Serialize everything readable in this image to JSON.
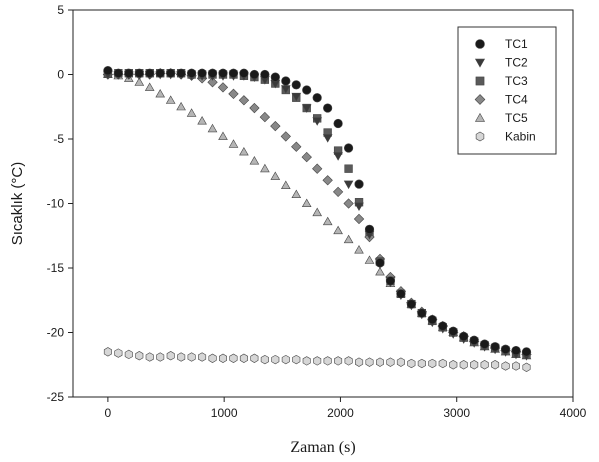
{
  "chart_data": {
    "type": "scatter",
    "title": "",
    "xlabel": "Zaman (s)",
    "ylabel": "Sıcaklık (°C)",
    "xlim": [
      -300,
      4000
    ],
    "ylim": [
      -25,
      5
    ],
    "xticks": [
      0,
      1000,
      2000,
      3000,
      4000
    ],
    "yticks": [
      5,
      0,
      -5,
      -10,
      -15,
      -20,
      -25
    ],
    "grid": false,
    "legend_position": "top-right",
    "series": [
      {
        "name": "TC1",
        "marker": "circle",
        "color": "#1a1a1a",
        "x": [
          0,
          90,
          180,
          270,
          360,
          450,
          540,
          630,
          720,
          810,
          900,
          990,
          1080,
          1170,
          1260,
          1350,
          1440,
          1530,
          1620,
          1710,
          1800,
          1890,
          1980,
          2070,
          2160,
          2250,
          2340,
          2430,
          2520,
          2610,
          2700,
          2790,
          2880,
          2970,
          3060,
          3150,
          3240,
          3330,
          3420,
          3510,
          3600
        ],
        "y": [
          0.3,
          0.1,
          0.1,
          0.1,
          0.1,
          0.1,
          0.1,
          0.1,
          0.1,
          0.1,
          0.1,
          0.1,
          0.1,
          0.1,
          0.0,
          0.0,
          -0.2,
          -0.5,
          -0.8,
          -1.2,
          -1.8,
          -2.6,
          -3.8,
          -5.7,
          -8.5,
          -12.0,
          -14.6,
          -16.0,
          -17.0,
          -17.8,
          -18.5,
          -19.0,
          -19.5,
          -19.9,
          -20.3,
          -20.6,
          -20.9,
          -21.1,
          -21.3,
          -21.4,
          -21.5
        ]
      },
      {
        "name": "TC2",
        "marker": "triangle-down",
        "color": "#3a3a3a",
        "x": [
          0,
          90,
          180,
          270,
          360,
          450,
          540,
          630,
          720,
          810,
          900,
          990,
          1080,
          1170,
          1260,
          1350,
          1440,
          1530,
          1620,
          1710,
          1800,
          1890,
          1980,
          2070,
          2160,
          2250,
          2340,
          2430,
          2520,
          2610,
          2700,
          2790,
          2880,
          2970,
          3060,
          3150,
          3240,
          3330,
          3420,
          3510,
          3600
        ],
        "y": [
          0.0,
          0.0,
          0.0,
          0.0,
          0.0,
          0.0,
          0.0,
          0.0,
          -0.1,
          -0.1,
          -0.1,
          -0.1,
          -0.1,
          -0.1,
          -0.2,
          -0.4,
          -0.7,
          -1.1,
          -1.7,
          -2.6,
          -3.6,
          -4.9,
          -6.3,
          -8.5,
          -10.2,
          -12.4,
          -14.7,
          -16.1,
          -17.1,
          -17.9,
          -18.6,
          -19.2,
          -19.7,
          -20.1,
          -20.5,
          -20.8,
          -21.1,
          -21.3,
          -21.5,
          -21.7,
          -21.8
        ]
      },
      {
        "name": "TC3",
        "marker": "square",
        "color": "#5a5a5a",
        "x": [
          0,
          90,
          180,
          270,
          360,
          450,
          540,
          630,
          720,
          810,
          900,
          990,
          1080,
          1170,
          1260,
          1350,
          1440,
          1530,
          1620,
          1710,
          1800,
          1890,
          1980,
          2070,
          2160,
          2250,
          2340,
          2430,
          2520,
          2610,
          2700,
          2790,
          2880,
          2970,
          3060,
          3150,
          3240,
          3330,
          3420,
          3510,
          3600
        ],
        "y": [
          0.1,
          0.1,
          0.1,
          0.1,
          0.1,
          0.1,
          0.1,
          0.1,
          0.0,
          0.0,
          0.0,
          0.0,
          0.0,
          -0.1,
          -0.2,
          -0.4,
          -0.7,
          -1.2,
          -1.8,
          -2.6,
          -3.4,
          -4.5,
          -5.9,
          -7.3,
          -9.9,
          -12.2,
          -14.5,
          -16.0,
          -17.0,
          -17.8,
          -18.5,
          -19.1,
          -19.6,
          -20.0,
          -20.4,
          -20.7,
          -21.0,
          -21.2,
          -21.4,
          -21.6,
          -21.7
        ]
      },
      {
        "name": "TC4",
        "marker": "diamond",
        "color": "#888888",
        "x": [
          0,
          90,
          180,
          270,
          360,
          450,
          540,
          630,
          720,
          810,
          900,
          990,
          1080,
          1170,
          1260,
          1350,
          1440,
          1530,
          1620,
          1710,
          1800,
          1890,
          1980,
          2070,
          2160,
          2250,
          2340,
          2430,
          2520,
          2610,
          2700,
          2790,
          2880,
          2970,
          3060,
          3150,
          3240,
          3330,
          3420,
          3510,
          3600
        ],
        "y": [
          0.0,
          0.0,
          0.0,
          0.0,
          0.0,
          0.1,
          0.1,
          0.0,
          -0.1,
          -0.3,
          -0.6,
          -1.0,
          -1.5,
          -2.0,
          -2.6,
          -3.3,
          -4.0,
          -4.8,
          -5.6,
          -6.4,
          -7.3,
          -8.2,
          -9.1,
          -10.0,
          -11.2,
          -12.6,
          -14.3,
          -15.7,
          -16.8,
          -17.7,
          -18.4,
          -19.0,
          -19.5,
          -20.0,
          -20.3,
          -20.7,
          -21.0,
          -21.2,
          -21.4,
          -21.5,
          -21.7
        ]
      },
      {
        "name": "TC5",
        "marker": "triangle-up",
        "color": "#b5b5b5",
        "x": [
          0,
          90,
          180,
          270,
          360,
          450,
          540,
          630,
          720,
          810,
          900,
          990,
          1080,
          1170,
          1260,
          1350,
          1440,
          1530,
          1620,
          1710,
          1800,
          1890,
          1980,
          2070,
          2160,
          2250,
          2340,
          2430,
          2520,
          2610,
          2700,
          2790,
          2880,
          2970,
          3060,
          3150,
          3240,
          3330,
          3420,
          3510,
          3600
        ],
        "y": [
          0.0,
          -0.1,
          -0.3,
          -0.6,
          -1.0,
          -1.5,
          -2.0,
          -2.5,
          -3.0,
          -3.6,
          -4.2,
          -4.8,
          -5.4,
          -6.0,
          -6.7,
          -7.3,
          -7.9,
          -8.6,
          -9.3,
          -10.0,
          -10.7,
          -11.4,
          -12.1,
          -12.8,
          -13.6,
          -14.4,
          -15.3,
          -16.2,
          -17.0,
          -17.8,
          -18.5,
          -19.1,
          -19.6,
          -20.0,
          -20.4,
          -20.8,
          -21.1,
          -21.3,
          -21.5,
          -21.7,
          -21.8
        ]
      },
      {
        "name": "Kabin",
        "marker": "hexagon",
        "color": "#d6d6d6",
        "x": [
          0,
          90,
          180,
          270,
          360,
          450,
          540,
          630,
          720,
          810,
          900,
          990,
          1080,
          1170,
          1260,
          1350,
          1440,
          1530,
          1620,
          1710,
          1800,
          1890,
          1980,
          2070,
          2160,
          2250,
          2340,
          2430,
          2520,
          2610,
          2700,
          2790,
          2880,
          2970,
          3060,
          3150,
          3240,
          3330,
          3420,
          3510,
          3600
        ],
        "y": [
          -21.5,
          -21.6,
          -21.7,
          -21.8,
          -21.9,
          -21.9,
          -21.8,
          -21.9,
          -21.9,
          -21.9,
          -22.0,
          -22.0,
          -22.0,
          -22.0,
          -22.0,
          -22.1,
          -22.1,
          -22.1,
          -22.1,
          -22.2,
          -22.2,
          -22.2,
          -22.2,
          -22.2,
          -22.3,
          -22.3,
          -22.3,
          -22.3,
          -22.3,
          -22.4,
          -22.4,
          -22.4,
          -22.4,
          -22.5,
          -22.5,
          -22.5,
          -22.5,
          -22.5,
          -22.6,
          -22.6,
          -22.7
        ]
      }
    ]
  }
}
